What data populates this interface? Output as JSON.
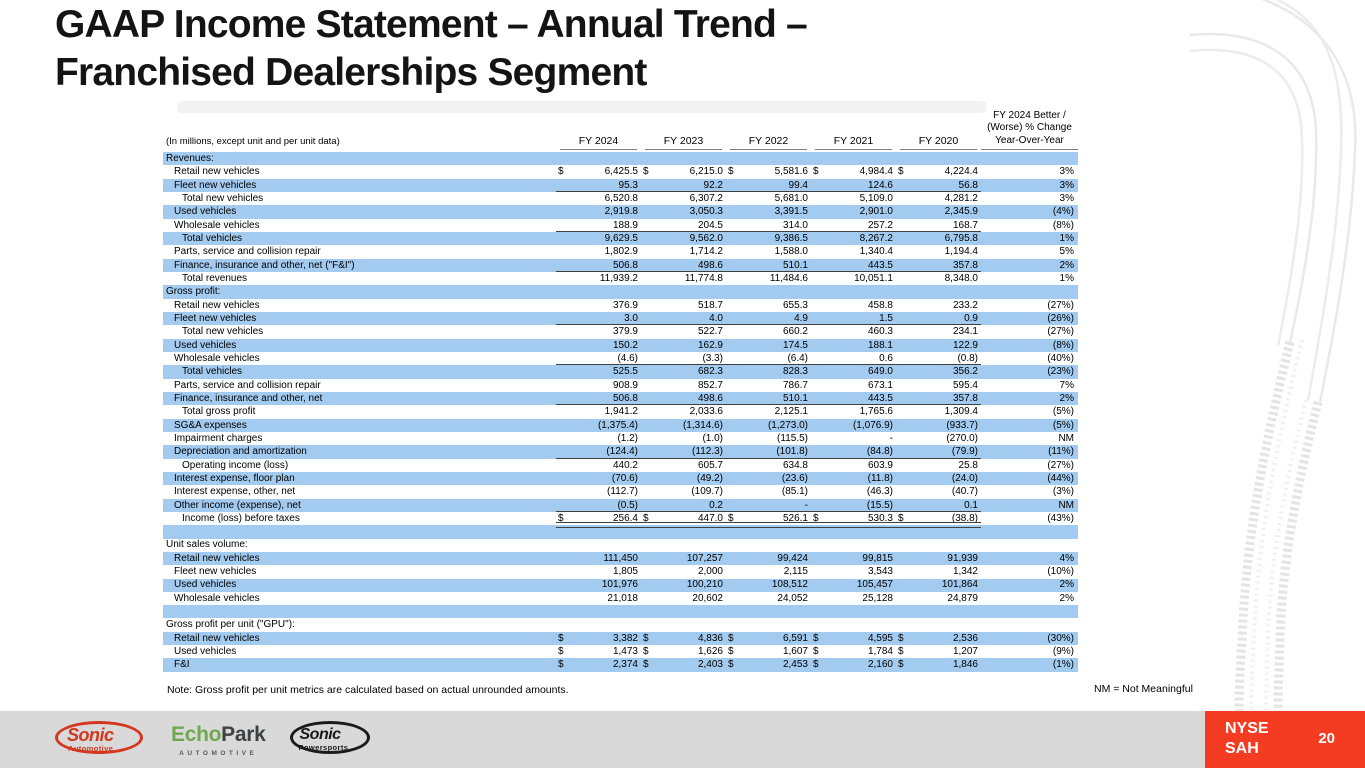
{
  "slide": {
    "title": "GAAP Income Statement – Annual Trend –\nFranchised Dealerships Segment",
    "note": "Note: Gross profit per unit metrics are calculated based on actual unrounded amounts.",
    "nm_note": "NM = Not Meaningful",
    "page_number": "20",
    "ticker": "NYSE\nSAH"
  },
  "colors": {
    "row_blue": "#A3CAEF",
    "accent_red": "#F43C22",
    "footer_gray": "#D9D9D9",
    "sonic_red": "#D4371F",
    "echo_green": "#6FA84F"
  },
  "logos": {
    "sonic_automotive": {
      "word": "Sonic",
      "sub": "Automotive"
    },
    "echopark": {
      "word1": "Echo",
      "word2": "Park",
      "sub": "AUTOMOTIVE"
    },
    "sonic_powersports": {
      "word": "Sonic",
      "sub": "Powersports"
    }
  },
  "table": {
    "caption": "(In millions, except unit and per unit data)",
    "columns": [
      "FY 2024",
      "FY 2023",
      "FY 2022",
      "FY 2021",
      "FY 2020"
    ],
    "change_header": [
      "FY 2024 Better /",
      "(Worse) % Change",
      "Year-Over-Year"
    ],
    "rows": [
      {
        "label": "Revenues:",
        "section": true,
        "indent": 0
      },
      {
        "label": "Retail new vehicles",
        "indent": 1,
        "dollar": true,
        "values": [
          "6,425.5",
          "6,215.0",
          "5,581.6",
          "4,984.4",
          "4,224.4"
        ],
        "change": "3%"
      },
      {
        "label": "Fleet new vehicles",
        "indent": 1,
        "values": [
          "95.3",
          "92.2",
          "99.4",
          "124.6",
          "56.8"
        ],
        "change": "3%",
        "underline": true
      },
      {
        "label": "Total new vehicles",
        "indent": 2,
        "values": [
          "6,520.8",
          "6,307.2",
          "5,681.0",
          "5,109.0",
          "4,281.2"
        ],
        "change": "3%"
      },
      {
        "label": "Used vehicles",
        "indent": 1,
        "values": [
          "2,919.8",
          "3,050.3",
          "3,391.5",
          "2,901.0",
          "2,345.9"
        ],
        "change": "(4%)"
      },
      {
        "label": "Wholesale vehicles",
        "indent": 1,
        "values": [
          "188.9",
          "204.5",
          "314.0",
          "257.2",
          "168.7"
        ],
        "change": "(8%)",
        "underline": true
      },
      {
        "label": "Total vehicles",
        "indent": 2,
        "values": [
          "9,629.5",
          "9,562.0",
          "9,386.5",
          "8,267.2",
          "6,795.8"
        ],
        "change": "1%"
      },
      {
        "label": "Parts, service and collision repair",
        "indent": 1,
        "values": [
          "1,802.9",
          "1,714.2",
          "1,588.0",
          "1,340.4",
          "1,194.4"
        ],
        "change": "5%"
      },
      {
        "label": "Finance, insurance and other, net (\"F&I\")",
        "indent": 1,
        "values": [
          "506.8",
          "498.6",
          "510.1",
          "443.5",
          "357.8"
        ],
        "change": "2%",
        "underline": true
      },
      {
        "label": "Total revenues",
        "indent": 2,
        "values": [
          "11,939.2",
          "11,774.8",
          "11,484.6",
          "10,051.1",
          "8,348.0"
        ],
        "change": "1%"
      },
      {
        "label": "Gross profit:",
        "section": true,
        "indent": 0
      },
      {
        "label": "Retail new vehicles",
        "indent": 1,
        "values": [
          "376.9",
          "518.7",
          "655.3",
          "458.8",
          "233.2"
        ],
        "change": "(27%)"
      },
      {
        "label": "Fleet new vehicles",
        "indent": 1,
        "values": [
          "3.0",
          "4.0",
          "4.9",
          "1.5",
          "0.9"
        ],
        "change": "(26%)",
        "underline": true
      },
      {
        "label": "Total new vehicles",
        "indent": 2,
        "values": [
          "379.9",
          "522.7",
          "660.2",
          "460.3",
          "234.1"
        ],
        "change": "(27%)"
      },
      {
        "label": "Used vehicles",
        "indent": 1,
        "values": [
          "150.2",
          "162.9",
          "174.5",
          "188.1",
          "122.9"
        ],
        "change": "(8%)"
      },
      {
        "label": "Wholesale vehicles",
        "indent": 1,
        "values": [
          "(4.6)",
          "(3.3)",
          "(6.4)",
          "0.6",
          "(0.8)"
        ],
        "change": "(40%)",
        "underline": true
      },
      {
        "label": "Total vehicles",
        "indent": 2,
        "values": [
          "525.5",
          "682.3",
          "828.3",
          "649.0",
          "356.2"
        ],
        "change": "(23%)"
      },
      {
        "label": "Parts, service and collision repair",
        "indent": 1,
        "values": [
          "908.9",
          "852.7",
          "786.7",
          "673.1",
          "595.4"
        ],
        "change": "7%"
      },
      {
        "label": "Finance, insurance and other, net",
        "indent": 1,
        "values": [
          "506.8",
          "498.6",
          "510.1",
          "443.5",
          "357.8"
        ],
        "change": "2%",
        "underline": true
      },
      {
        "label": "Total gross profit",
        "indent": 2,
        "values": [
          "1,941.2",
          "2,033.6",
          "2,125.1",
          "1,765.6",
          "1,309.4"
        ],
        "change": "(5%)"
      },
      {
        "label": "SG&A expenses",
        "indent": 1,
        "values": [
          "(1,375.4)",
          "(1,314.6)",
          "(1,273.0)",
          "(1,076.9)",
          "(933.7)"
        ],
        "change": "(5%)"
      },
      {
        "label": "Impairment charges",
        "indent": 1,
        "values": [
          "(1.2)",
          "(1.0)",
          "(115.5)",
          "-",
          "(270.0)"
        ],
        "change": "NM"
      },
      {
        "label": "Depreciation and amortization",
        "indent": 1,
        "values": [
          "(124.4)",
          "(112.3)",
          "(101.8)",
          "(84.8)",
          "(79.9)"
        ],
        "change": "(11%)",
        "underline": true
      },
      {
        "label": "Operating income (loss)",
        "indent": 2,
        "values": [
          "440.2",
          "605.7",
          "634.8",
          "603.9",
          "25.8"
        ],
        "change": "(27%)"
      },
      {
        "label": "Interest expense, floor plan",
        "indent": 1,
        "values": [
          "(70.6)",
          "(49.2)",
          "(23.6)",
          "(11.8)",
          "(24.0)"
        ],
        "change": "(44%)"
      },
      {
        "label": "Interest expense, other, net",
        "indent": 1,
        "values": [
          "(112.7)",
          "(109.7)",
          "(85.1)",
          "(46.3)",
          "(40.7)"
        ],
        "change": "(3%)"
      },
      {
        "label": "Other income (expense), net",
        "indent": 1,
        "values": [
          "(0.5)",
          "0.2",
          "-",
          "(15.5)",
          "0.1"
        ],
        "change": "NM",
        "underline": true
      },
      {
        "label": "Income (loss) before taxes",
        "indent": 2,
        "dollar": true,
        "values": [
          "256.4",
          "447.0",
          "526.1",
          "530.3",
          "(38.8)"
        ],
        "change": "(43%)",
        "double_underline": true
      },
      {
        "blank": true
      },
      {
        "label": "Unit sales volume:",
        "section": true,
        "indent": 0
      },
      {
        "label": "Retail new vehicles",
        "indent": 1,
        "values": [
          "111,450",
          "107,257",
          "99,424",
          "99,815",
          "91,939"
        ],
        "change": "4%"
      },
      {
        "label": "Fleet new vehicles",
        "indent": 1,
        "values": [
          "1,805",
          "2,000",
          "2,115",
          "3,543",
          "1,342"
        ],
        "change": "(10%)"
      },
      {
        "label": "Used vehicles",
        "indent": 1,
        "values": [
          "101,976",
          "100,210",
          "108,512",
          "105,457",
          "101,864"
        ],
        "change": "2%"
      },
      {
        "label": "Wholesale vehicles",
        "indent": 1,
        "values": [
          "21,018",
          "20,602",
          "24,052",
          "25,128",
          "24,879"
        ],
        "change": "2%"
      },
      {
        "blank": true
      },
      {
        "label": "Gross profit per unit (\"GPU\"):",
        "section": true,
        "indent": 0
      },
      {
        "label": "Retail new vehicles",
        "indent": 1,
        "dollar": true,
        "values": [
          "3,382",
          "4,836",
          "6,591",
          "4,595",
          "2,536"
        ],
        "change": "(30%)"
      },
      {
        "label": "Used vehicles",
        "indent": 1,
        "dollar": true,
        "values": [
          "1,473",
          "1,626",
          "1,607",
          "1,784",
          "1,207"
        ],
        "change": "(9%)"
      },
      {
        "label": "F&I",
        "indent": 1,
        "dollar": true,
        "values": [
          "2,374",
          "2,403",
          "2,453",
          "2,160",
          "1,846"
        ],
        "change": "(1%)"
      }
    ]
  }
}
